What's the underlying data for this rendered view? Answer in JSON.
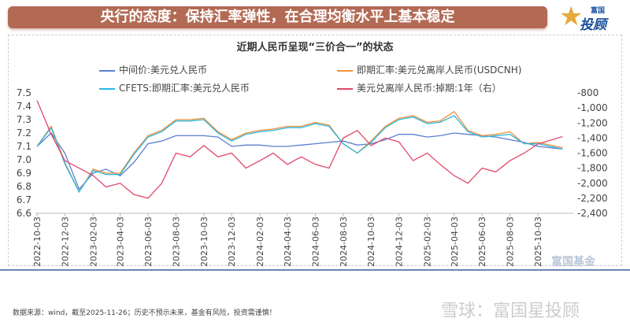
{
  "header": {
    "title": "央行的态度：保持汇率弹性，在合理均衡水平上基本稳定",
    "logo_text": "富国星投顾"
  },
  "footer": {
    "source": "数据来源：wind，截至2025-11-26；历史不预示未来，基金有风险，投资需谨慎！",
    "watermark": "雪球：富国星投顾",
    "watermark2": "富国基金"
  },
  "chart_data": {
    "type": "line",
    "title": "近期人民币呈现“三价合一”的状态",
    "legend_position": "top",
    "x_ticks": [
      "2022-10-03",
      "2022-12-03",
      "2023-02-03",
      "2023-04-03",
      "2023-06-03",
      "2023-08-03",
      "2023-10-03",
      "2023-12-03",
      "2024-02-03",
      "2024-04-03",
      "2024-06-03",
      "2024-08-03",
      "2024-10-03",
      "2024-12-03",
      "2025-02-03",
      "2025-04-03",
      "2025-06-03",
      "2025-08-03",
      "2025-10-03"
    ],
    "y_left": {
      "range": [
        6.6,
        7.5
      ],
      "ticks": [
        "7.5",
        "7.4",
        "7.3",
        "7.2",
        "7.1",
        "7.0",
        "6.9",
        "6.8",
        "6.7",
        "6.6"
      ]
    },
    "y_right": {
      "range": [
        -2400,
        -800
      ],
      "ticks": [
        "-800",
        "-1,000",
        "-1,200",
        "-1,400",
        "-1,600",
        "-1,800",
        "-2,000",
        "-2,200",
        "-2,400"
      ]
    },
    "x": [
      "2022-10",
      "2022-11",
      "2022-12",
      "2023-01",
      "2023-02",
      "2023-03",
      "2023-04",
      "2023-05",
      "2023-06",
      "2023-07",
      "2023-08",
      "2023-09",
      "2023-10",
      "2023-11",
      "2023-12",
      "2024-01",
      "2024-02",
      "2024-03",
      "2024-04",
      "2024-05",
      "2024-06",
      "2024-07",
      "2024-08",
      "2024-09",
      "2024-10",
      "2024-11",
      "2024-12",
      "2025-01",
      "2025-02",
      "2025-03",
      "2025-04",
      "2025-05",
      "2025-06",
      "2025-07",
      "2025-08",
      "2025-09",
      "2025-10",
      "2025-11"
    ],
    "series": [
      {
        "name": "中间价:美元兑人民币",
        "color": "#5b7fd0",
        "axis": "left",
        "values": [
          7.1,
          7.2,
          7.05,
          6.78,
          6.9,
          6.93,
          6.88,
          6.98,
          7.12,
          7.14,
          7.18,
          7.18,
          7.18,
          7.17,
          7.1,
          7.11,
          7.11,
          7.1,
          7.1,
          7.11,
          7.12,
          7.13,
          7.14,
          7.11,
          7.12,
          7.15,
          7.19,
          7.19,
          7.17,
          7.18,
          7.2,
          7.19,
          7.18,
          7.17,
          7.15,
          7.13,
          7.1,
          7.08
        ]
      },
      {
        "name": "即期汇率:美元兑离岸人民币(USDCNH)",
        "color": "#f0923a",
        "axis": "left",
        "values": [
          7.1,
          7.25,
          6.98,
          6.76,
          6.93,
          6.9,
          6.9,
          7.05,
          7.18,
          7.22,
          7.3,
          7.3,
          7.31,
          7.21,
          7.15,
          7.2,
          7.22,
          7.23,
          7.25,
          7.25,
          7.28,
          7.26,
          7.12,
          7.05,
          7.14,
          7.25,
          7.31,
          7.33,
          7.28,
          7.29,
          7.36,
          7.22,
          7.18,
          7.19,
          7.21,
          7.12,
          7.13,
          7.09
        ]
      },
      {
        "name": "CFETS:即期汇率:美元兑人民币",
        "color": "#2bb7e0",
        "axis": "left",
        "values": [
          7.1,
          7.24,
          6.97,
          6.76,
          6.92,
          6.89,
          6.89,
          7.04,
          7.17,
          7.21,
          7.29,
          7.29,
          7.3,
          7.2,
          7.14,
          7.19,
          7.21,
          7.22,
          7.24,
          7.24,
          7.27,
          7.25,
          7.12,
          7.05,
          7.13,
          7.24,
          7.3,
          7.32,
          7.27,
          7.28,
          7.33,
          7.21,
          7.17,
          7.18,
          7.19,
          7.12,
          7.12,
          7.08
        ]
      },
      {
        "name": "美元兑离岸人民币:掉期:1年（右）",
        "color": "#e0486a",
        "axis": "right",
        "values": [
          -900,
          -1350,
          -1700,
          -1800,
          -1900,
          -2050,
          -2000,
          -2150,
          -2200,
          -2000,
          -1600,
          -1650,
          -1500,
          -1650,
          -1600,
          -1800,
          -1700,
          -1600,
          -1750,
          -1650,
          -1750,
          -1800,
          -1400,
          -1300,
          -1500,
          -1400,
          -1450,
          -1700,
          -1600,
          -1750,
          -1900,
          -2000,
          -1800,
          -1850,
          -1700,
          -1600,
          -1480,
          -1380
        ]
      }
    ]
  }
}
